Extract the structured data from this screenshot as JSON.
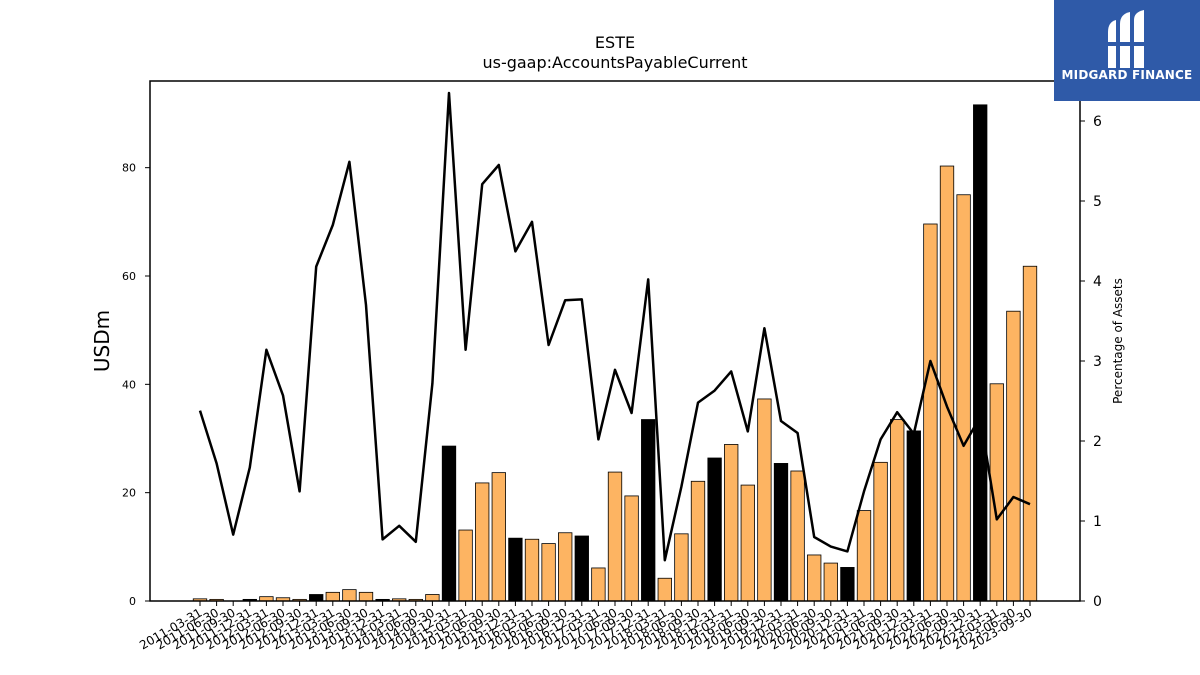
{
  "logo": {
    "brand_name": "MIDGARD FINANCE",
    "color": "#2f5aa8"
  },
  "chart_data": {
    "type": "bar",
    "title": "ESTE",
    "subtitle": "us-gaap:AccountsPayableCurrent",
    "ylabel": "USDm",
    "y2label": "Percentage of Assets",
    "ylim": [
      0,
      96
    ],
    "y2lim": [
      0,
      6.5
    ],
    "yticks": [
      0,
      20,
      40,
      60,
      80
    ],
    "y2ticks": [
      0,
      1,
      2,
      3,
      4,
      5,
      6
    ],
    "grid": false,
    "colors": {
      "regular_bar": "#fdb462",
      "q4_bar": "#000000",
      "line": "#000000"
    },
    "categories": [
      "2011-03-31",
      "2011-06-30",
      "2011-09-30",
      "2011-12-31",
      "2012-03-31",
      "2012-06-30",
      "2012-09-30",
      "2012-12-31",
      "2013-03-31",
      "2013-06-30",
      "2013-09-30",
      "2013-12-31",
      "2014-03-31",
      "2014-06-30",
      "2014-09-30",
      "2014-12-31",
      "2015-03-31",
      "2015-06-30",
      "2015-09-30",
      "2015-12-31",
      "2016-03-31",
      "2016-06-30",
      "2016-09-30",
      "2016-12-31",
      "2017-03-31",
      "2017-06-30",
      "2017-09-30",
      "2017-12-31",
      "2018-03-31",
      "2018-06-30",
      "2018-09-30",
      "2018-12-31",
      "2019-03-31",
      "2019-06-30",
      "2019-09-30",
      "2019-12-31",
      "2020-03-31",
      "2020-06-30",
      "2020-09-30",
      "2020-12-31",
      "2021-03-31",
      "2021-06-30",
      "2021-09-30",
      "2021-12-31",
      "2022-03-31",
      "2022-06-30",
      "2022-09-30",
      "2022-12-31",
      "2023-03-31",
      "2023-06-30",
      "2023-09-30"
    ],
    "series": [
      {
        "type": "bar",
        "values": [
          0.4,
          0.3,
          0.0,
          0.3,
          0.8,
          0.6,
          0.3,
          1.2,
          1.6,
          2.1,
          1.6,
          0.3,
          0.4,
          0.3,
          1.2,
          28.6,
          13.1,
          21.8,
          23.7,
          11.6,
          11.4,
          10.6,
          12.6,
          12.0,
          6.1,
          23.8,
          19.4,
          33.5,
          4.2,
          12.4,
          22.1,
          26.4,
          28.9,
          21.4,
          37.3,
          25.4,
          24.0,
          8.5,
          7.0,
          6.2,
          16.7,
          25.6,
          33.5,
          31.4,
          69.6,
          80.3,
          75.0,
          91.6,
          40.1,
          53.5,
          61.8
        ],
        "is_q4": [
          false,
          false,
          false,
          true,
          false,
          false,
          false,
          true,
          false,
          false,
          false,
          true,
          false,
          false,
          false,
          true,
          false,
          false,
          false,
          true,
          false,
          false,
          false,
          true,
          false,
          false,
          false,
          true,
          false,
          false,
          false,
          true,
          false,
          false,
          false,
          true,
          false,
          false,
          false,
          true,
          false,
          false,
          false,
          true,
          false,
          false,
          false,
          true,
          false,
          false,
          false
        ]
      },
      {
        "type": "line",
        "axis": "right",
        "values": [
          2.38,
          1.72,
          0.83,
          1.67,
          3.14,
          2.57,
          1.37,
          4.18,
          4.7,
          5.49,
          3.7,
          0.77,
          0.94,
          0.74,
          2.72,
          6.35,
          3.14,
          5.21,
          5.45,
          4.37,
          4.74,
          3.2,
          3.76,
          3.77,
          2.02,
          2.89,
          2.35,
          4.02,
          0.51,
          1.43,
          2.48,
          2.63,
          2.87,
          2.12,
          3.41,
          2.25,
          2.1,
          0.8,
          0.68,
          0.62,
          1.37,
          2.02,
          2.36,
          2.09,
          3.0,
          2.43,
          1.94,
          2.3,
          1.02,
          1.3,
          1.21
        ]
      }
    ]
  }
}
